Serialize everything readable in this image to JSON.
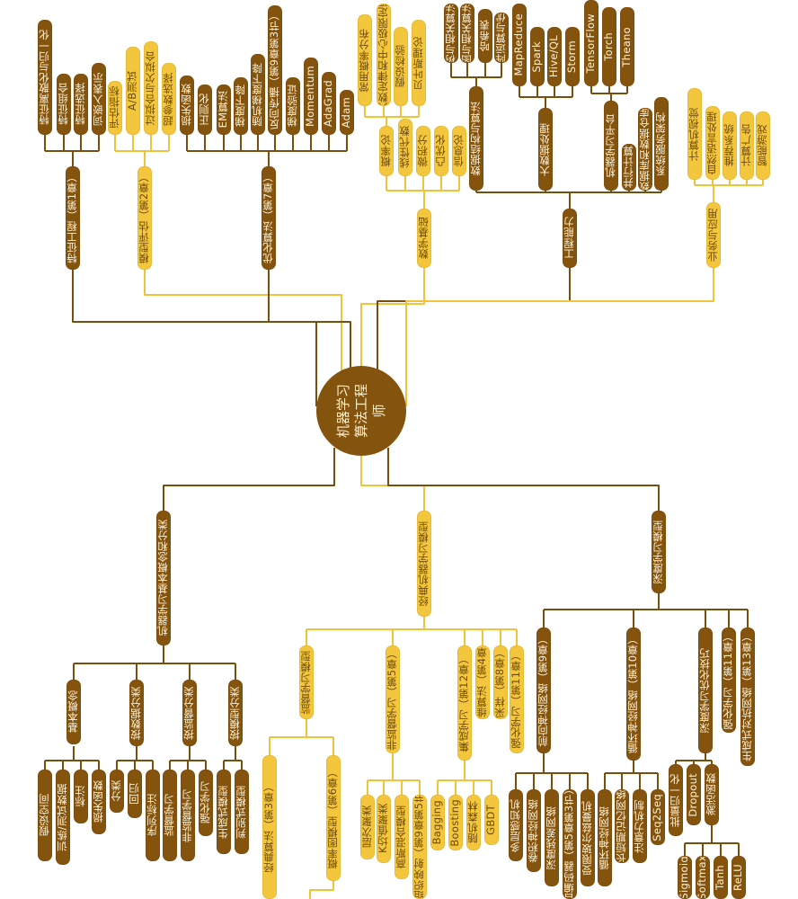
{
  "root": {
    "title": "机器学习算法工程师"
  },
  "upper_branches": [
    {
      "id": "feat",
      "label": "特征工程（第1章）",
      "tone": "dark",
      "children": [
        "特征离散化与归一化",
        "特征组合",
        "特征选择",
        "词嵌入表示"
      ]
    },
    {
      "id": "eval",
      "label": "模型评估（第2章）",
      "tone": "light",
      "children": [
        "评估指标",
        "A/B测试",
        "过拟合与欠拟合",
        "超参数选择"
      ]
    },
    {
      "id": "opt",
      "label": "优化算法（第7章）",
      "tone": "dark",
      "children": [
        "损失函数",
        "正则化",
        "EM算法",
        "梯度下降",
        "随机梯度下降",
        "反向传播（第9章第3节）",
        "梯度验证",
        "Momentum",
        "AdaGrad",
        "Adam"
      ]
    },
    {
      "id": "math",
      "label": "数学基础",
      "tone": "light",
      "children": [
        "概率论",
        "线性代数",
        "微积分",
        "凸优化",
        "信息论"
      ],
      "grandchildren": [
        "常用概率分布",
        "大数定律和中心极限定理",
        "假设检验",
        "贝叶斯理论"
      ]
    },
    {
      "id": "eng",
      "label": "工程能力",
      "tone": "dark",
      "children": [
        "数据结构与算法",
        "大数据处理",
        "机器学习平台",
        "并行计算",
        "数据库和数据仓库",
        "系统服务架构"
      ],
      "ds_children": [
        "树与相关算法",
        "图与相关算法",
        "哈希表",
        "矩阵运算与优化"
      ],
      "bd_children": [
        "MapReduce",
        "Spark",
        "Hive/QL",
        "Storm"
      ],
      "ml_children": [
        "TensorFlow",
        "Torch",
        "Theano"
      ]
    },
    {
      "id": "biz",
      "label": "业务与应用",
      "tone": "light",
      "children": [
        "计算机视觉",
        "自然语言处理",
        "推荐系统",
        "计算广告",
        "智能游戏"
      ]
    }
  ],
  "lower_branches": [
    {
      "id": "basic",
      "label": "机器学习基本概念和分类",
      "tone": "dark",
      "children": [
        {
          "label": "基本概念",
          "leaves": [
            "假设空间",
            "训练/测试数据",
            "标注",
            "损失函数"
          ]
        },
        {
          "label": "按数据分类",
          "leaves": [
            "分类",
            "回归",
            "序列标注"
          ]
        },
        {
          "label": "按监督分类",
          "leaves": [
            "监督学习",
            "非监督学习",
            "强化学习"
          ]
        },
        {
          "label": "按模型分类",
          "leaves": [
            "生成式模型",
            "判别式模型"
          ]
        }
      ]
    },
    {
      "id": "classic",
      "label": "经典机器学习模型",
      "tone": "light",
      "children": [
        {
          "label": "监督学习模型",
          "sub": [
            "经典算法（第3章）",
            "概率图模型（第6章）"
          ]
        },
        {
          "label": "非监督学习（第5章）",
          "leaves": [
            "层次聚类",
            "K均值聚类",
            "高斯混合模型",
            "自组织映射（第9章第5节）"
          ]
        },
        {
          "label": "集成学习（第12章）",
          "leaves": [
            "Bagging",
            "Boosting",
            "随机森林",
            "GBDT"
          ]
        },
        {
          "label": "降维算法（第4章）"
        },
        {
          "label": "采样（第8章）"
        },
        {
          "label": "强化学习（第11章）"
        }
      ]
    },
    {
      "id": "deep",
      "label": "深度学习模型",
      "tone": "dark",
      "children": [
        {
          "label": "前向神经网络（第9章）",
          "leaves": [
            "多层感知机",
            "卷积神经网络",
            "深度残差网络",
            "自编码器（第5章第3节）",
            "受限玻尔兹曼机"
          ]
        },
        {
          "label": "循环神经网络（第10章）",
          "leaves": [
            "循环神经网络",
            "长短期记忆网络",
            "注意力机制",
            "Seq2Seq"
          ]
        },
        {
          "label": "深度学习优化技巧",
          "leaves": [
            "批量归一化",
            "Dropout",
            "激活函数"
          ],
          "activations": [
            "Sigmoid",
            "Softmax",
            "Tanh",
            "ReLU"
          ]
        },
        {
          "label": "强化学习（第11章）"
        },
        {
          "label": "生成式对抗网络（第13章）"
        }
      ]
    }
  ],
  "colors": {
    "dark": "#84530d",
    "light": "#f3c63d",
    "dark_line": "#7a4f0e",
    "light_line": "#f2c23a",
    "background": "#ffffff"
  }
}
